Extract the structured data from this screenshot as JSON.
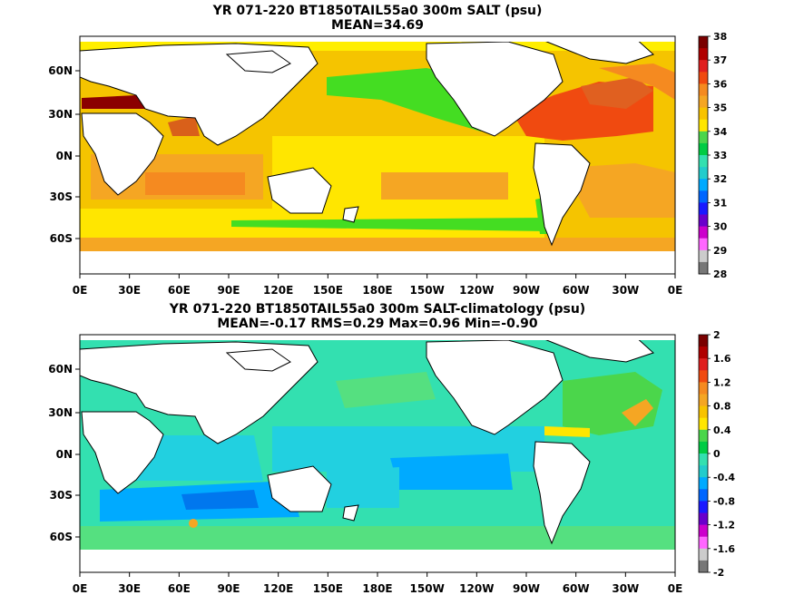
{
  "chart_data": [
    {
      "type": "heatmap",
      "title": "YR 071-220 BT1850TAIL55a0 300m SALT (psu)",
      "subtitle": "MEAN=34.69",
      "x_ticks": [
        "0E",
        "30E",
        "60E",
        "90E",
        "120E",
        "150E",
        "180E",
        "150W",
        "120W",
        "90W",
        "60W",
        "30W",
        "0E"
      ],
      "y_ticks": [
        "60N",
        "30N",
        "0N",
        "30S",
        "60S"
      ],
      "colorbar_labels": [
        "38",
        "37",
        "36",
        "35",
        "34",
        "33",
        "32",
        "31",
        "30",
        "29",
        "28"
      ],
      "colorbar_colors": [
        "#7a0000",
        "#b00000",
        "#e02020",
        "#f04a10",
        "#f58a20",
        "#f5a623",
        "#f8c300",
        "#ffe600",
        "#4bd64b",
        "#00cc44",
        "#33e0b0",
        "#22cccc",
        "#00aaff",
        "#0066ff",
        "#1a1aff",
        "#6a00cc",
        "#cc00cc",
        "#ff66ff",
        "#cccccc",
        "#777777"
      ],
      "series_description": "",
      "value_range": [
        28,
        38
      ]
    },
    {
      "type": "heatmap",
      "title": "YR 071-220 BT1850TAIL55a0 300m SALT-climatology (psu)",
      "subtitle": "MEAN=-0.17   RMS=0.29   Max=0.96   Min=-0.90",
      "x_ticks": [
        "0E",
        "30E",
        "60E",
        "90E",
        "120E",
        "150E",
        "180E",
        "150W",
        "120W",
        "90W",
        "60W",
        "30W",
        "0E"
      ],
      "y_ticks": [
        "60N",
        "30N",
        "0N",
        "30S",
        "60S"
      ],
      "colorbar_labels": [
        "2",
        "1.6",
        "1.2",
        "0.8",
        "0.4",
        "0",
        "-0.4",
        "-0.8",
        "-1.2",
        "-1.6",
        "-2"
      ],
      "colorbar_colors": [
        "#7a0000",
        "#b00000",
        "#e02020",
        "#f04a10",
        "#f58a20",
        "#f5a623",
        "#f8c300",
        "#ffe600",
        "#4bd64b",
        "#00cc44",
        "#33e0b0",
        "#22cccc",
        "#00aaff",
        "#0066ff",
        "#1a1aff",
        "#6a00cc",
        "#cc00cc",
        "#ff66ff",
        "#cccccc",
        "#777777"
      ],
      "value_range": [
        -2,
        2
      ]
    }
  ]
}
